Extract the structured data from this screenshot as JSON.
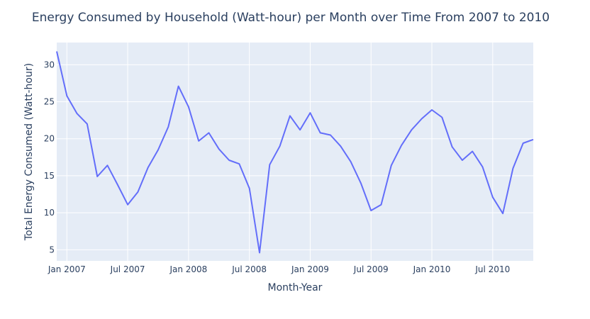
{
  "chart_data": {
    "type": "line",
    "title": "Energy Consumed by Household (Watt-hour) per Month over Time From 2007 to 2010",
    "xlabel": "Month-Year",
    "ylabel": "Total Energy Consumed (Watt-hour)",
    "x_tick_labels": [
      "Jan 2007",
      "Jul 2007",
      "Jan 2008",
      "Jul 2008",
      "Jan 2009",
      "Jul 2009",
      "Jan 2010",
      "Jul 2010"
    ],
    "x_ticks": [
      "2007-01",
      "2007-07",
      "2008-01",
      "2008-07",
      "2009-01",
      "2009-07",
      "2010-01",
      "2010-07"
    ],
    "y_ticks": [
      5,
      10,
      15,
      20,
      25,
      30
    ],
    "xlim": [
      "2006-12",
      "2010-11"
    ],
    "ylim": [
      3.5,
      33
    ],
    "grid": true,
    "line_color": "#636efa",
    "plot_bg": "#e5ecf6",
    "series": [
      {
        "x": [
          "2006-12",
          "2007-01",
          "2007-02",
          "2007-03",
          "2007-04",
          "2007-05",
          "2007-06",
          "2007-07",
          "2007-08",
          "2007-09",
          "2007-10",
          "2007-11",
          "2007-12",
          "2008-01",
          "2008-02",
          "2008-03",
          "2008-04",
          "2008-05",
          "2008-06",
          "2008-07",
          "2008-08",
          "2008-09",
          "2008-10",
          "2008-11",
          "2008-12",
          "2009-01",
          "2009-02",
          "2009-03",
          "2009-04",
          "2009-05",
          "2009-06",
          "2009-07",
          "2009-08",
          "2009-09",
          "2009-10",
          "2009-11",
          "2009-12",
          "2010-01",
          "2010-02",
          "2010-03",
          "2010-04",
          "2010-05",
          "2010-06",
          "2010-07",
          "2010-08",
          "2010-09",
          "2010-10",
          "2010-11"
        ],
        "values": [
          31.8,
          25.8,
          23.4,
          22.0,
          14.9,
          16.4,
          13.8,
          11.1,
          12.8,
          16.1,
          18.5,
          21.6,
          27.1,
          24.3,
          19.7,
          20.8,
          18.6,
          17.1,
          16.6,
          13.3,
          4.6,
          16.5,
          19.0,
          23.1,
          21.2,
          23.5,
          20.8,
          20.5,
          19.0,
          16.9,
          14.0,
          10.3,
          11.1,
          16.4,
          19.1,
          21.2,
          22.7,
          23.9,
          22.9,
          18.9,
          17.1,
          18.3,
          16.2,
          12.1,
          9.9,
          16.0,
          19.4,
          19.9
        ]
      }
    ]
  }
}
